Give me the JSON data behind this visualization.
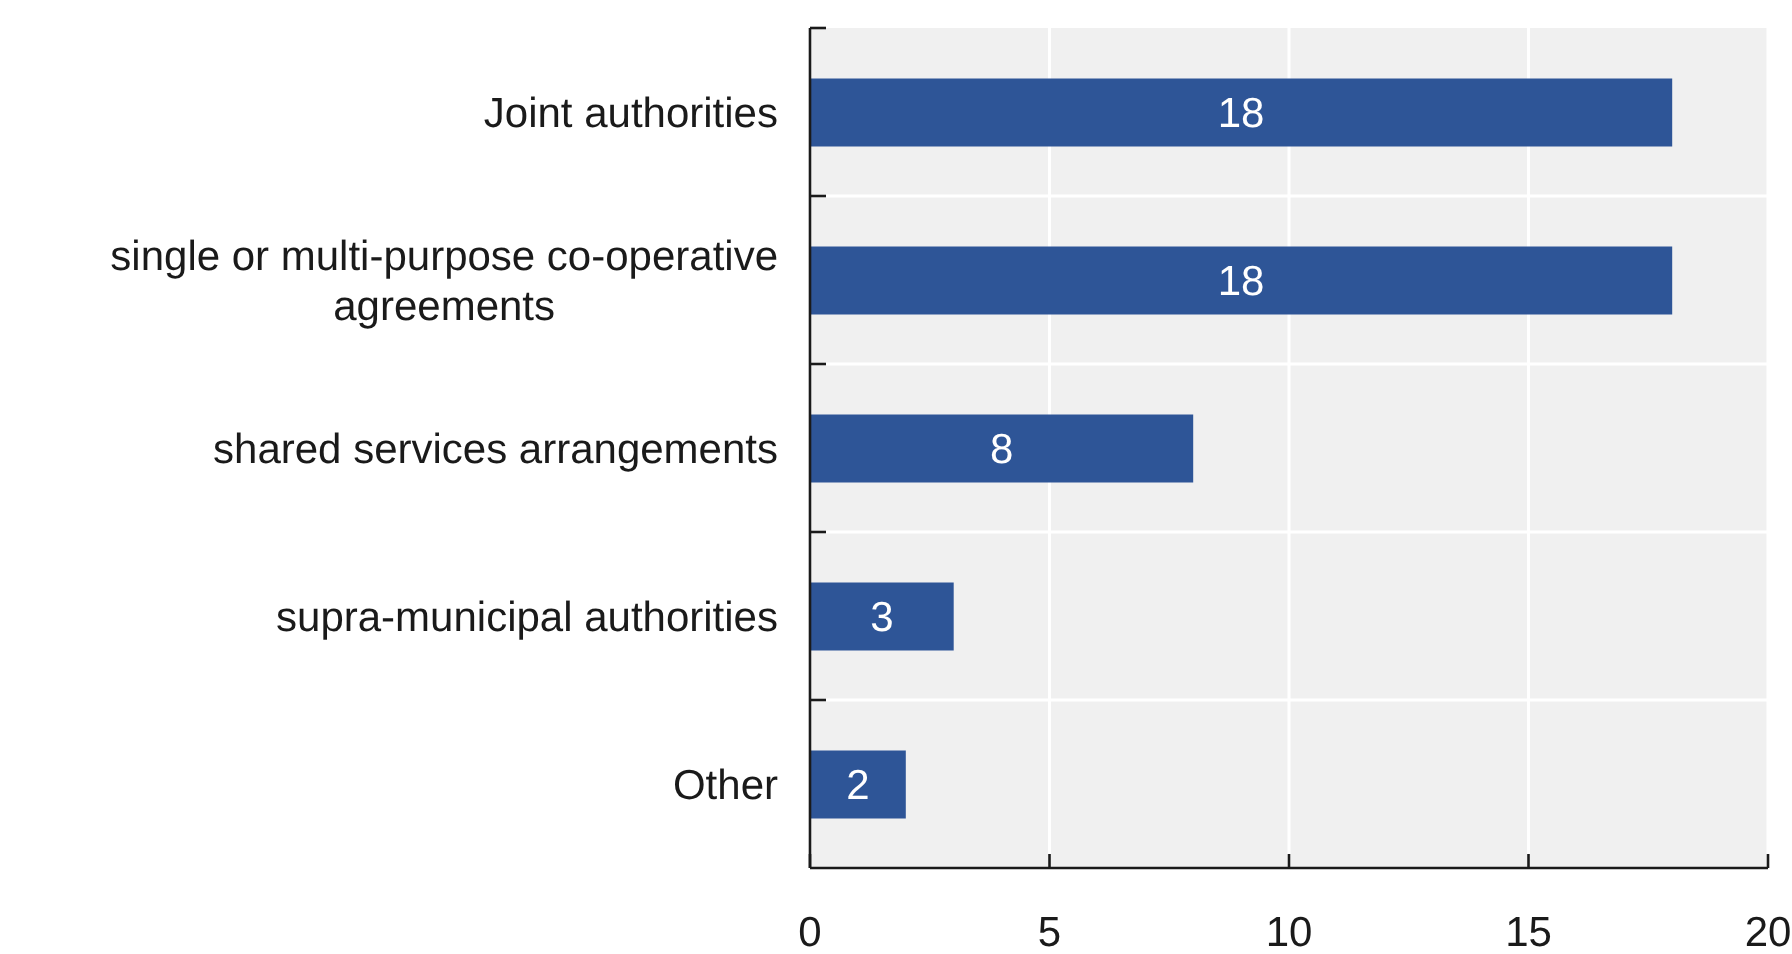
{
  "chart_data": {
    "type": "bar",
    "orientation": "horizontal",
    "categories": [
      "Joint authorities",
      "single or multi-purpose co-operative agreements",
      "shared services arrangements",
      "supra-municipal authorities",
      "Other"
    ],
    "values": [
      18,
      18,
      8,
      3,
      2
    ],
    "color": "#2e5597",
    "xlim": [
      0,
      20
    ],
    "xticks": [
      0,
      5,
      10,
      15,
      20
    ],
    "grid": true,
    "data_labels": true
  }
}
